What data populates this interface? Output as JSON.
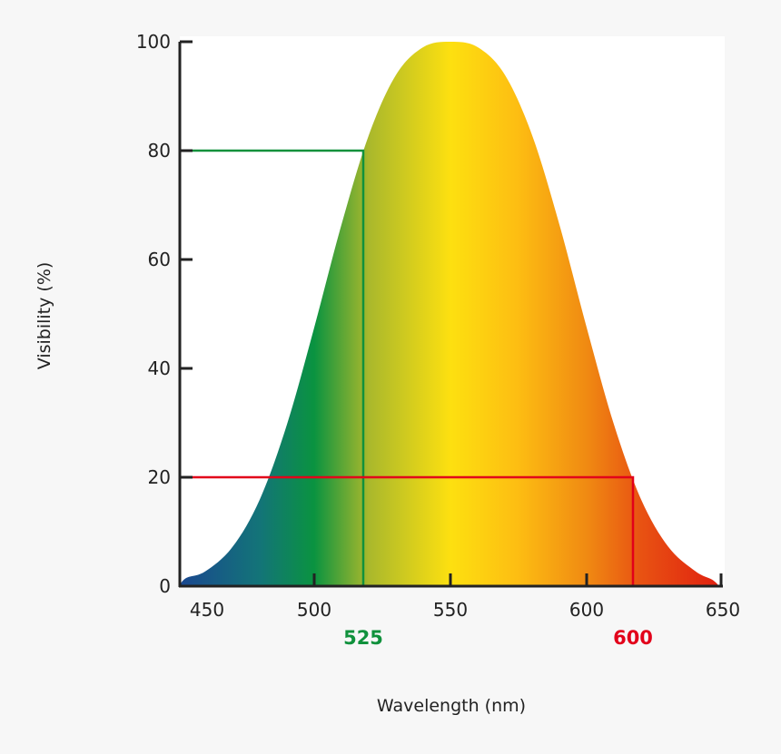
{
  "chart_data": {
    "type": "area",
    "xlabel": "Wavelength (nm)",
    "ylabel": "Visibility (%)",
    "xlim": [
      450,
      650
    ],
    "ylim": [
      0,
      100
    ],
    "x_ticks": [
      "450",
      "500",
      "550",
      "600",
      "650"
    ],
    "y_ticks": [
      "0",
      "20",
      "40",
      "60",
      "80",
      "100"
    ],
    "grid": false,
    "x": [
      453,
      460,
      470,
      480,
      490,
      500,
      510,
      520,
      530,
      540,
      550,
      560,
      570,
      580,
      590,
      600,
      610,
      620,
      630,
      640,
      646
    ],
    "values": [
      1.5,
      2.7,
      7.2,
      15.9,
      29.7,
      47.5,
      66.4,
      82.8,
      93.9,
      99.0,
      100,
      99.0,
      93.9,
      82.8,
      66.4,
      47.5,
      29.7,
      15.9,
      7.2,
      2.7,
      1.2
    ],
    "fill_gradient": [
      {
        "nm": 450,
        "color": "#1a4690"
      },
      {
        "nm": 480,
        "color": "#137478"
      },
      {
        "nm": 500,
        "color": "#0a9340"
      },
      {
        "nm": 520,
        "color": "#a9b82c"
      },
      {
        "nm": 550,
        "color": "#fde010"
      },
      {
        "nm": 575,
        "color": "#fdbd12"
      },
      {
        "nm": 600,
        "color": "#f08a12"
      },
      {
        "nm": 620,
        "color": "#e85212"
      },
      {
        "nm": 650,
        "color": "#e01e10"
      }
    ],
    "markers": [
      {
        "x": 518,
        "y": 80,
        "label": "525",
        "color": "#10913c"
      },
      {
        "x": 617,
        "y": 20,
        "label": "600",
        "color": "#e2001a"
      }
    ]
  }
}
